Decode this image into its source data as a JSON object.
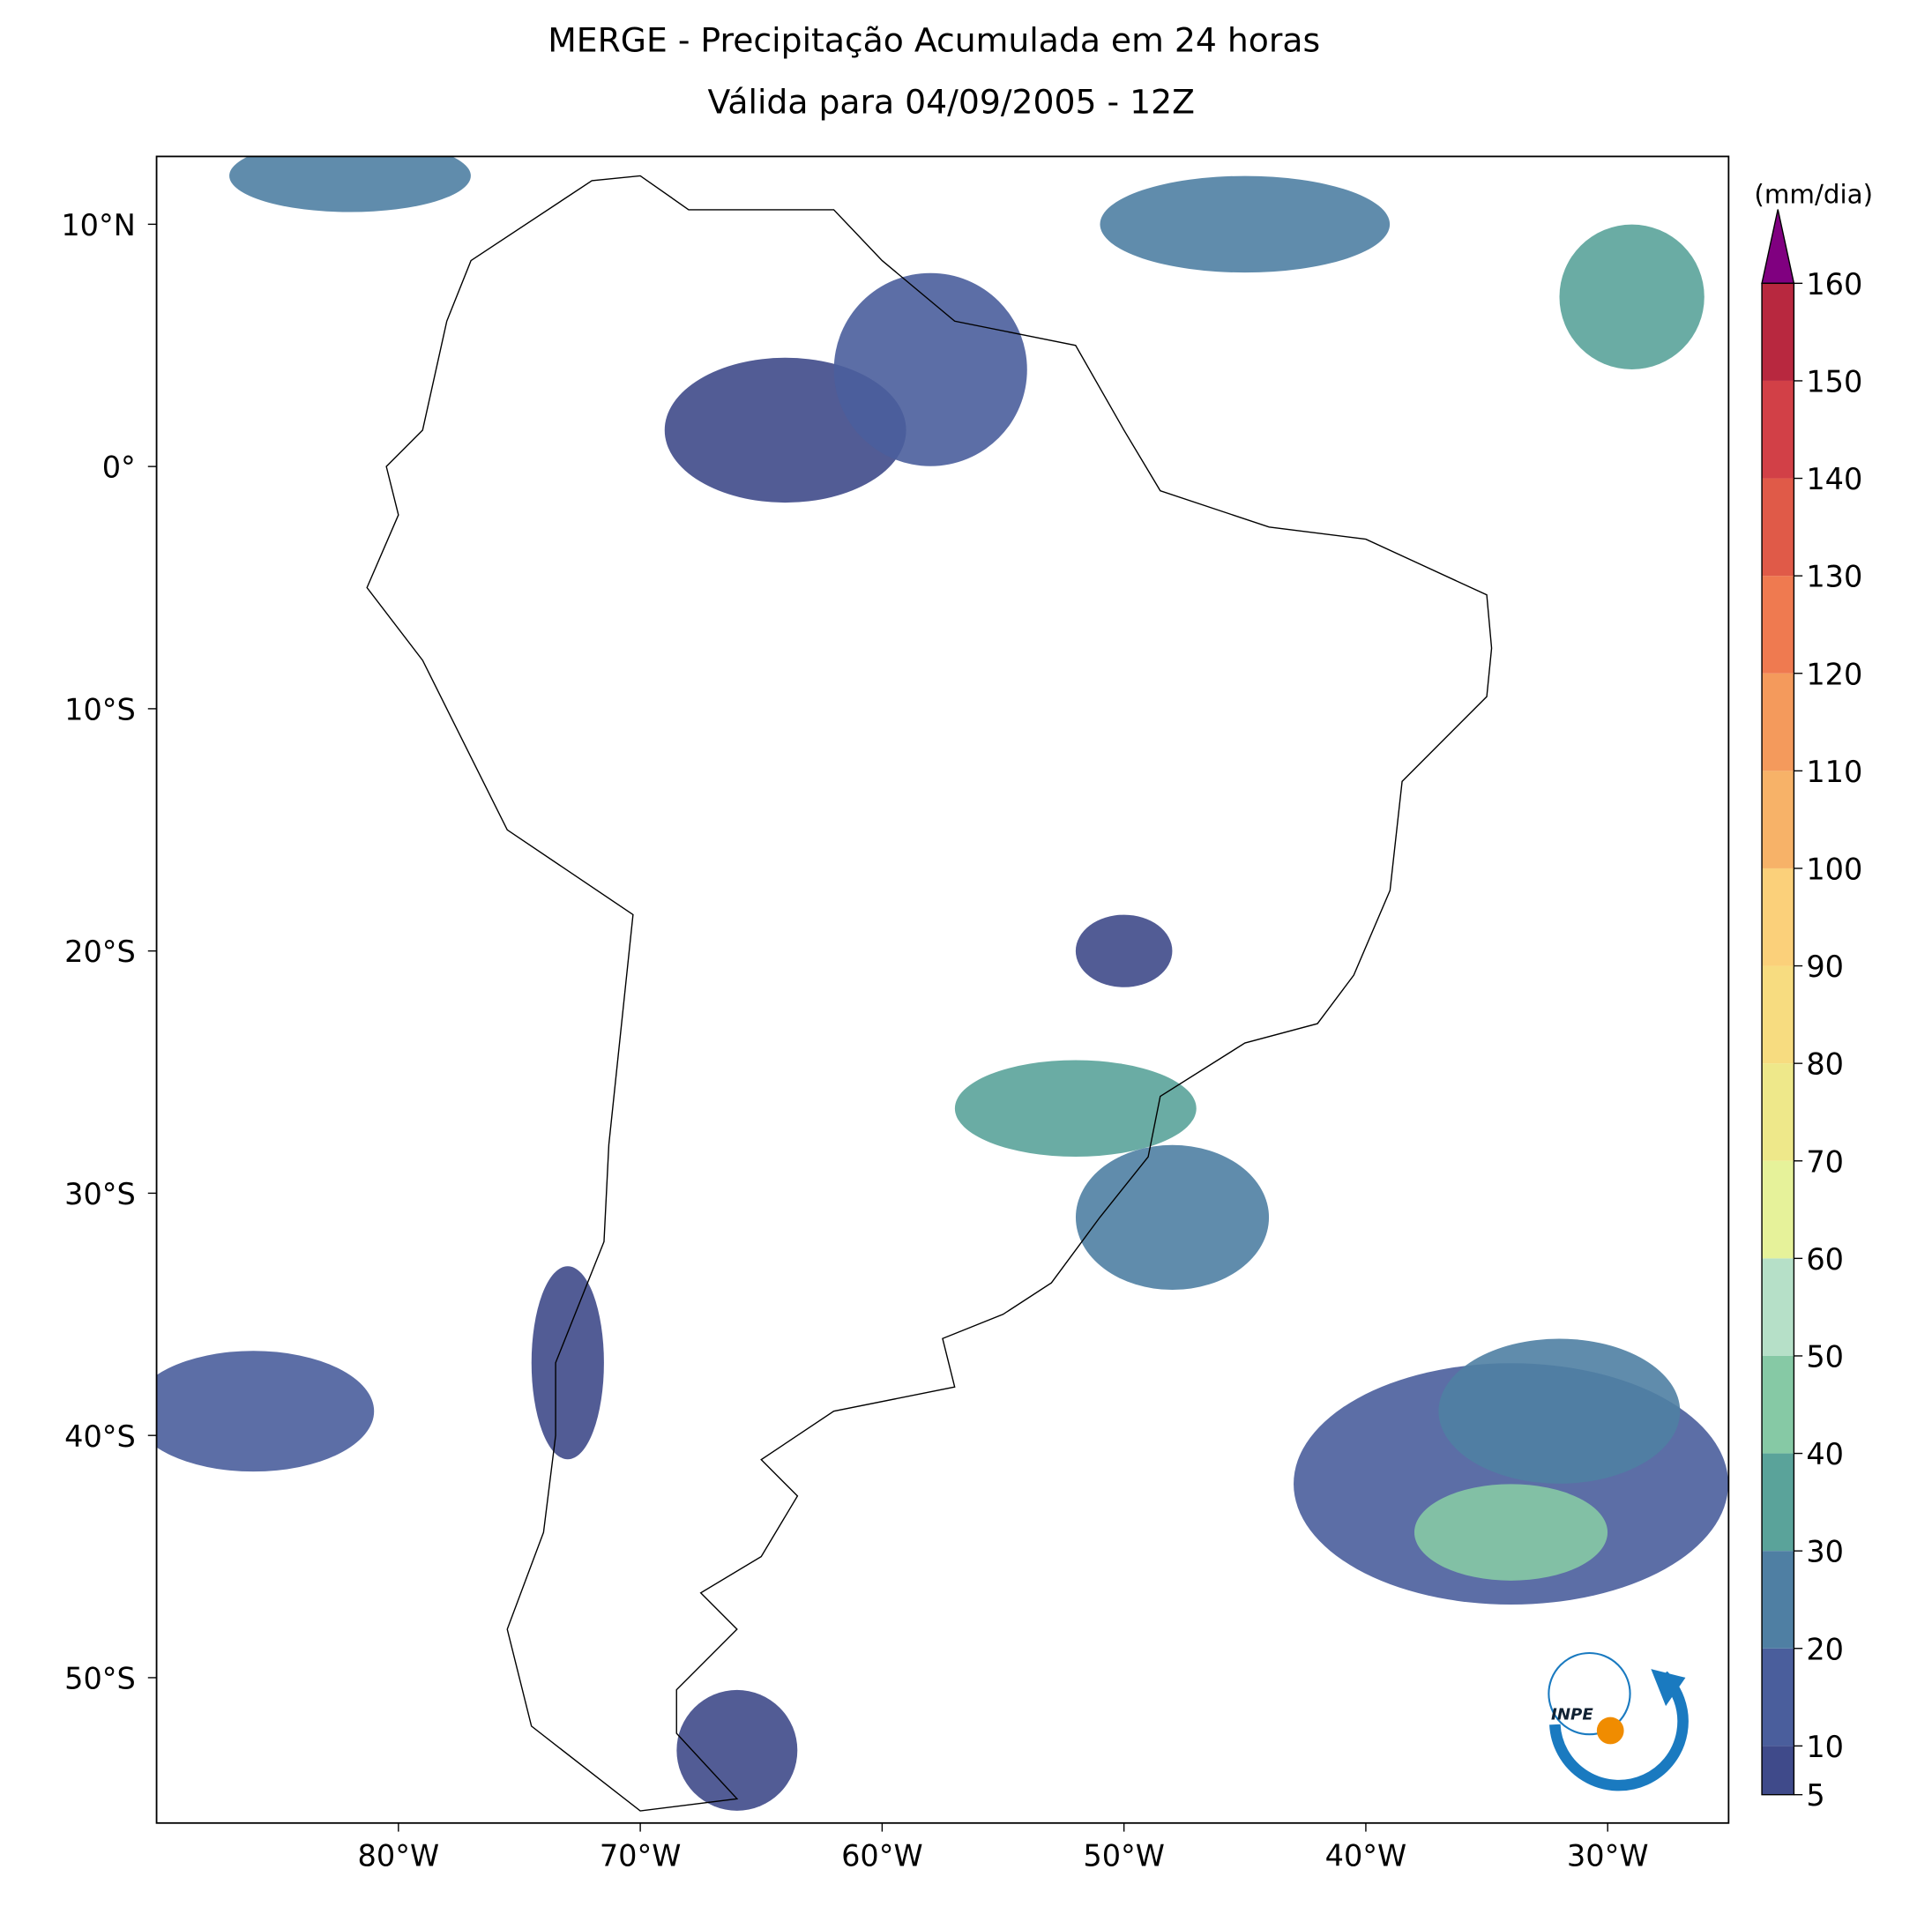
{
  "title": [
    "MERGE - Precipitação Acumulada em 24 horas",
    "Válida para 04/09/2005 - 12Z"
  ],
  "map": {
    "xlim": [
      -90,
      -25
    ],
    "ylim": [
      -56,
      12.8
    ],
    "xticks": [
      {
        "value": -80,
        "label": "80°W"
      },
      {
        "value": -70,
        "label": "70°W"
      },
      {
        "value": -60,
        "label": "60°W"
      },
      {
        "value": -50,
        "label": "50°W"
      },
      {
        "value": -40,
        "label": "40°W"
      },
      {
        "value": -30,
        "label": "30°W"
      }
    ],
    "yticks": [
      {
        "value": 10,
        "label": "10°N"
      },
      {
        "value": 0,
        "label": "0°"
      },
      {
        "value": -10,
        "label": "10°S"
      },
      {
        "value": -20,
        "label": "20°S"
      },
      {
        "value": -30,
        "label": "30°S"
      },
      {
        "value": -40,
        "label": "40°S"
      },
      {
        "value": -50,
        "label": "50°S"
      }
    ]
  },
  "colorbar": {
    "unit": "(mm/dia)",
    "lim": [
      5,
      160
    ],
    "ticks": [
      5,
      10,
      20,
      30,
      40,
      50,
      60,
      70,
      80,
      90,
      100,
      110,
      120,
      130,
      140,
      150,
      160
    ],
    "colors": [
      "#3f4a8a",
      "#4a5e9c",
      "#4f7fa3",
      "#5aa39a",
      "#86c9a5",
      "#b6e0c8",
      "#e6f29a",
      "#eee88a",
      "#f7dc80",
      "#fbd07a",
      "#f7b268",
      "#f49a5c",
      "#ef7a50",
      "#e05a48",
      "#d24047",
      "#b8283f"
    ],
    "extend_color": "#800080"
  },
  "logo": "INPE"
}
